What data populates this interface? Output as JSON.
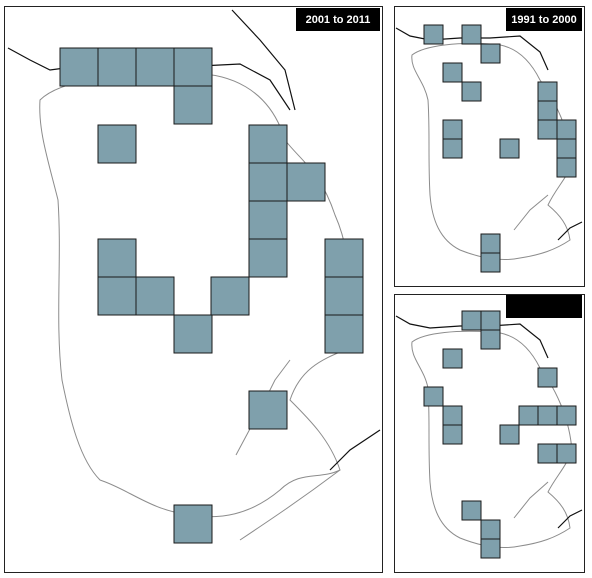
{
  "panels": [
    {
      "label": "2001 to 2011"
    },
    {
      "label": "1991 to 2000"
    }
  ]
}
